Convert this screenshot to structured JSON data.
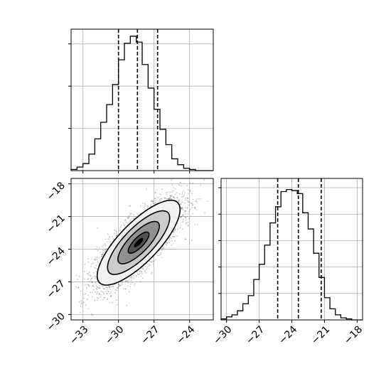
{
  "chart_data": {
    "type": "corner",
    "parameters": [
      "",
      ""
    ],
    "marginals": [
      {
        "name": "param-x",
        "bin_edges": [
          -34.0,
          -33.5,
          -33.0,
          -32.5,
          -32.0,
          -31.5,
          -31.0,
          -30.5,
          -30.0,
          -29.5,
          -29.0,
          -28.5,
          -28.0,
          -27.5,
          -27.0,
          -26.5,
          -26.0,
          -25.5,
          -25.0,
          -24.5,
          -24.0,
          -23.5,
          -23.0,
          -22.5,
          -22.0
        ],
        "counts": [
          1,
          3,
          6,
          14,
          27,
          41,
          56,
          73,
          94,
          108,
          114,
          109,
          90,
          70,
          52,
          35,
          22,
          10,
          5,
          2,
          1,
          0,
          0,
          0
        ],
        "quantiles": [
          -30.0,
          -28.4,
          -26.7
        ],
        "xlim": [
          -34.0,
          -22.0
        ],
        "xticks": [
          -33,
          -30,
          -27,
          -24
        ],
        "ylim": [
          0,
          120
        ]
      },
      {
        "name": "param-y",
        "bin_edges": [
          -30.5,
          -30.0,
          -29.5,
          -29.0,
          -28.5,
          -28.0,
          -27.5,
          -27.0,
          -26.5,
          -26.0,
          -25.5,
          -25.0,
          -24.5,
          -24.0,
          -23.5,
          -23.0,
          -22.5,
          -22.0,
          -21.5,
          -21.0,
          -20.5,
          -20.0,
          -19.5,
          -19.0,
          -18.5,
          -18.0,
          -17.5
        ],
        "counts": [
          1,
          3,
          5,
          9,
          16,
          24,
          40,
          55,
          74,
          96,
          112,
          127,
          129,
          128,
          125,
          106,
          90,
          66,
          42,
          22,
          11,
          5,
          2,
          1,
          0,
          0
        ],
        "quantiles": [
          -25.3,
          -23.4,
          -21.3
        ],
        "xlim": [
          -30.5,
          -17.5
        ],
        "xticks": [
          -30,
          -27,
          -24,
          -21,
          -18
        ],
        "ylim": [
          0,
          140
        ]
      }
    ],
    "joint": {
      "type": "scatter-density-contour",
      "x_param": "param-x",
      "y_param": "param-y",
      "mean": [
        -28.3,
        -23.4
      ],
      "std": [
        1.75,
        1.95
      ],
      "correlation": 0.78,
      "n_points": 4000,
      "contour_levels_sigma": [
        0.5,
        1.0,
        1.5,
        2.0
      ],
      "xlim": [
        -34.0,
        -22.0
      ],
      "ylim": [
        -30.5,
        -17.5
      ],
      "xticks": [
        -33,
        -30,
        -27,
        -24
      ],
      "yticks": [
        -30,
        -27,
        -24,
        -21,
        -18
      ]
    },
    "grid": true,
    "legend": "none",
    "colors": {
      "line": "#000000",
      "grid": "#b0b0b0",
      "points": "#000000"
    }
  }
}
